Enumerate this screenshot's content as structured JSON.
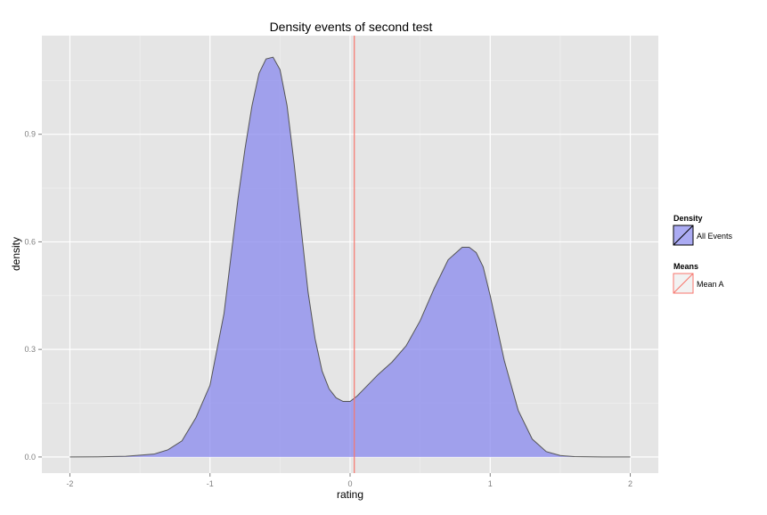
{
  "chart_data": {
    "type": "area",
    "title": "Density events of second test",
    "xlabel": "rating",
    "ylabel": "density",
    "xlim": [
      -2.2,
      2.2
    ],
    "ylim": [
      -0.045,
      1.175
    ],
    "x_ticks": [
      -2,
      -1,
      0,
      1,
      2
    ],
    "x_tick_labels": [
      "-2",
      "-1",
      "0",
      "1",
      "2"
    ],
    "y_ticks": [
      0.0,
      0.3,
      0.6,
      0.9
    ],
    "y_tick_labels": [
      "0.0",
      "0.3",
      "0.6",
      "0.9"
    ],
    "grid": true,
    "legend_position": "right",
    "series": [
      {
        "name": "All Events",
        "color": "#8888ee",
        "x": [
          -2.0,
          -1.8,
          -1.6,
          -1.4,
          -1.3,
          -1.2,
          -1.1,
          -1.0,
          -0.9,
          -0.8,
          -0.75,
          -0.7,
          -0.65,
          -0.6,
          -0.55,
          -0.5,
          -0.45,
          -0.4,
          -0.35,
          -0.3,
          -0.25,
          -0.2,
          -0.15,
          -0.1,
          -0.05,
          0.0,
          0.05,
          0.1,
          0.2,
          0.3,
          0.4,
          0.5,
          0.6,
          0.7,
          0.8,
          0.85,
          0.9,
          0.95,
          1.0,
          1.05,
          1.1,
          1.2,
          1.3,
          1.4,
          1.5,
          1.6,
          1.8,
          2.0
        ],
        "y": [
          0.0,
          0.0005,
          0.002,
          0.008,
          0.02,
          0.045,
          0.11,
          0.2,
          0.4,
          0.72,
          0.86,
          0.98,
          1.07,
          1.11,
          1.115,
          1.08,
          0.98,
          0.82,
          0.64,
          0.46,
          0.33,
          0.24,
          0.19,
          0.165,
          0.155,
          0.155,
          0.17,
          0.19,
          0.23,
          0.265,
          0.31,
          0.38,
          0.47,
          0.55,
          0.585,
          0.585,
          0.57,
          0.53,
          0.45,
          0.36,
          0.27,
          0.13,
          0.05,
          0.015,
          0.004,
          0.001,
          0.0,
          0.0
        ]
      }
    ],
    "vlines": [
      {
        "name": "Mean A",
        "x": 0.03,
        "color": "#f8766d"
      }
    ]
  },
  "legend": {
    "density_title": "Density",
    "density_item": "All Events",
    "means_title": "Means",
    "means_item": "Mean A"
  }
}
